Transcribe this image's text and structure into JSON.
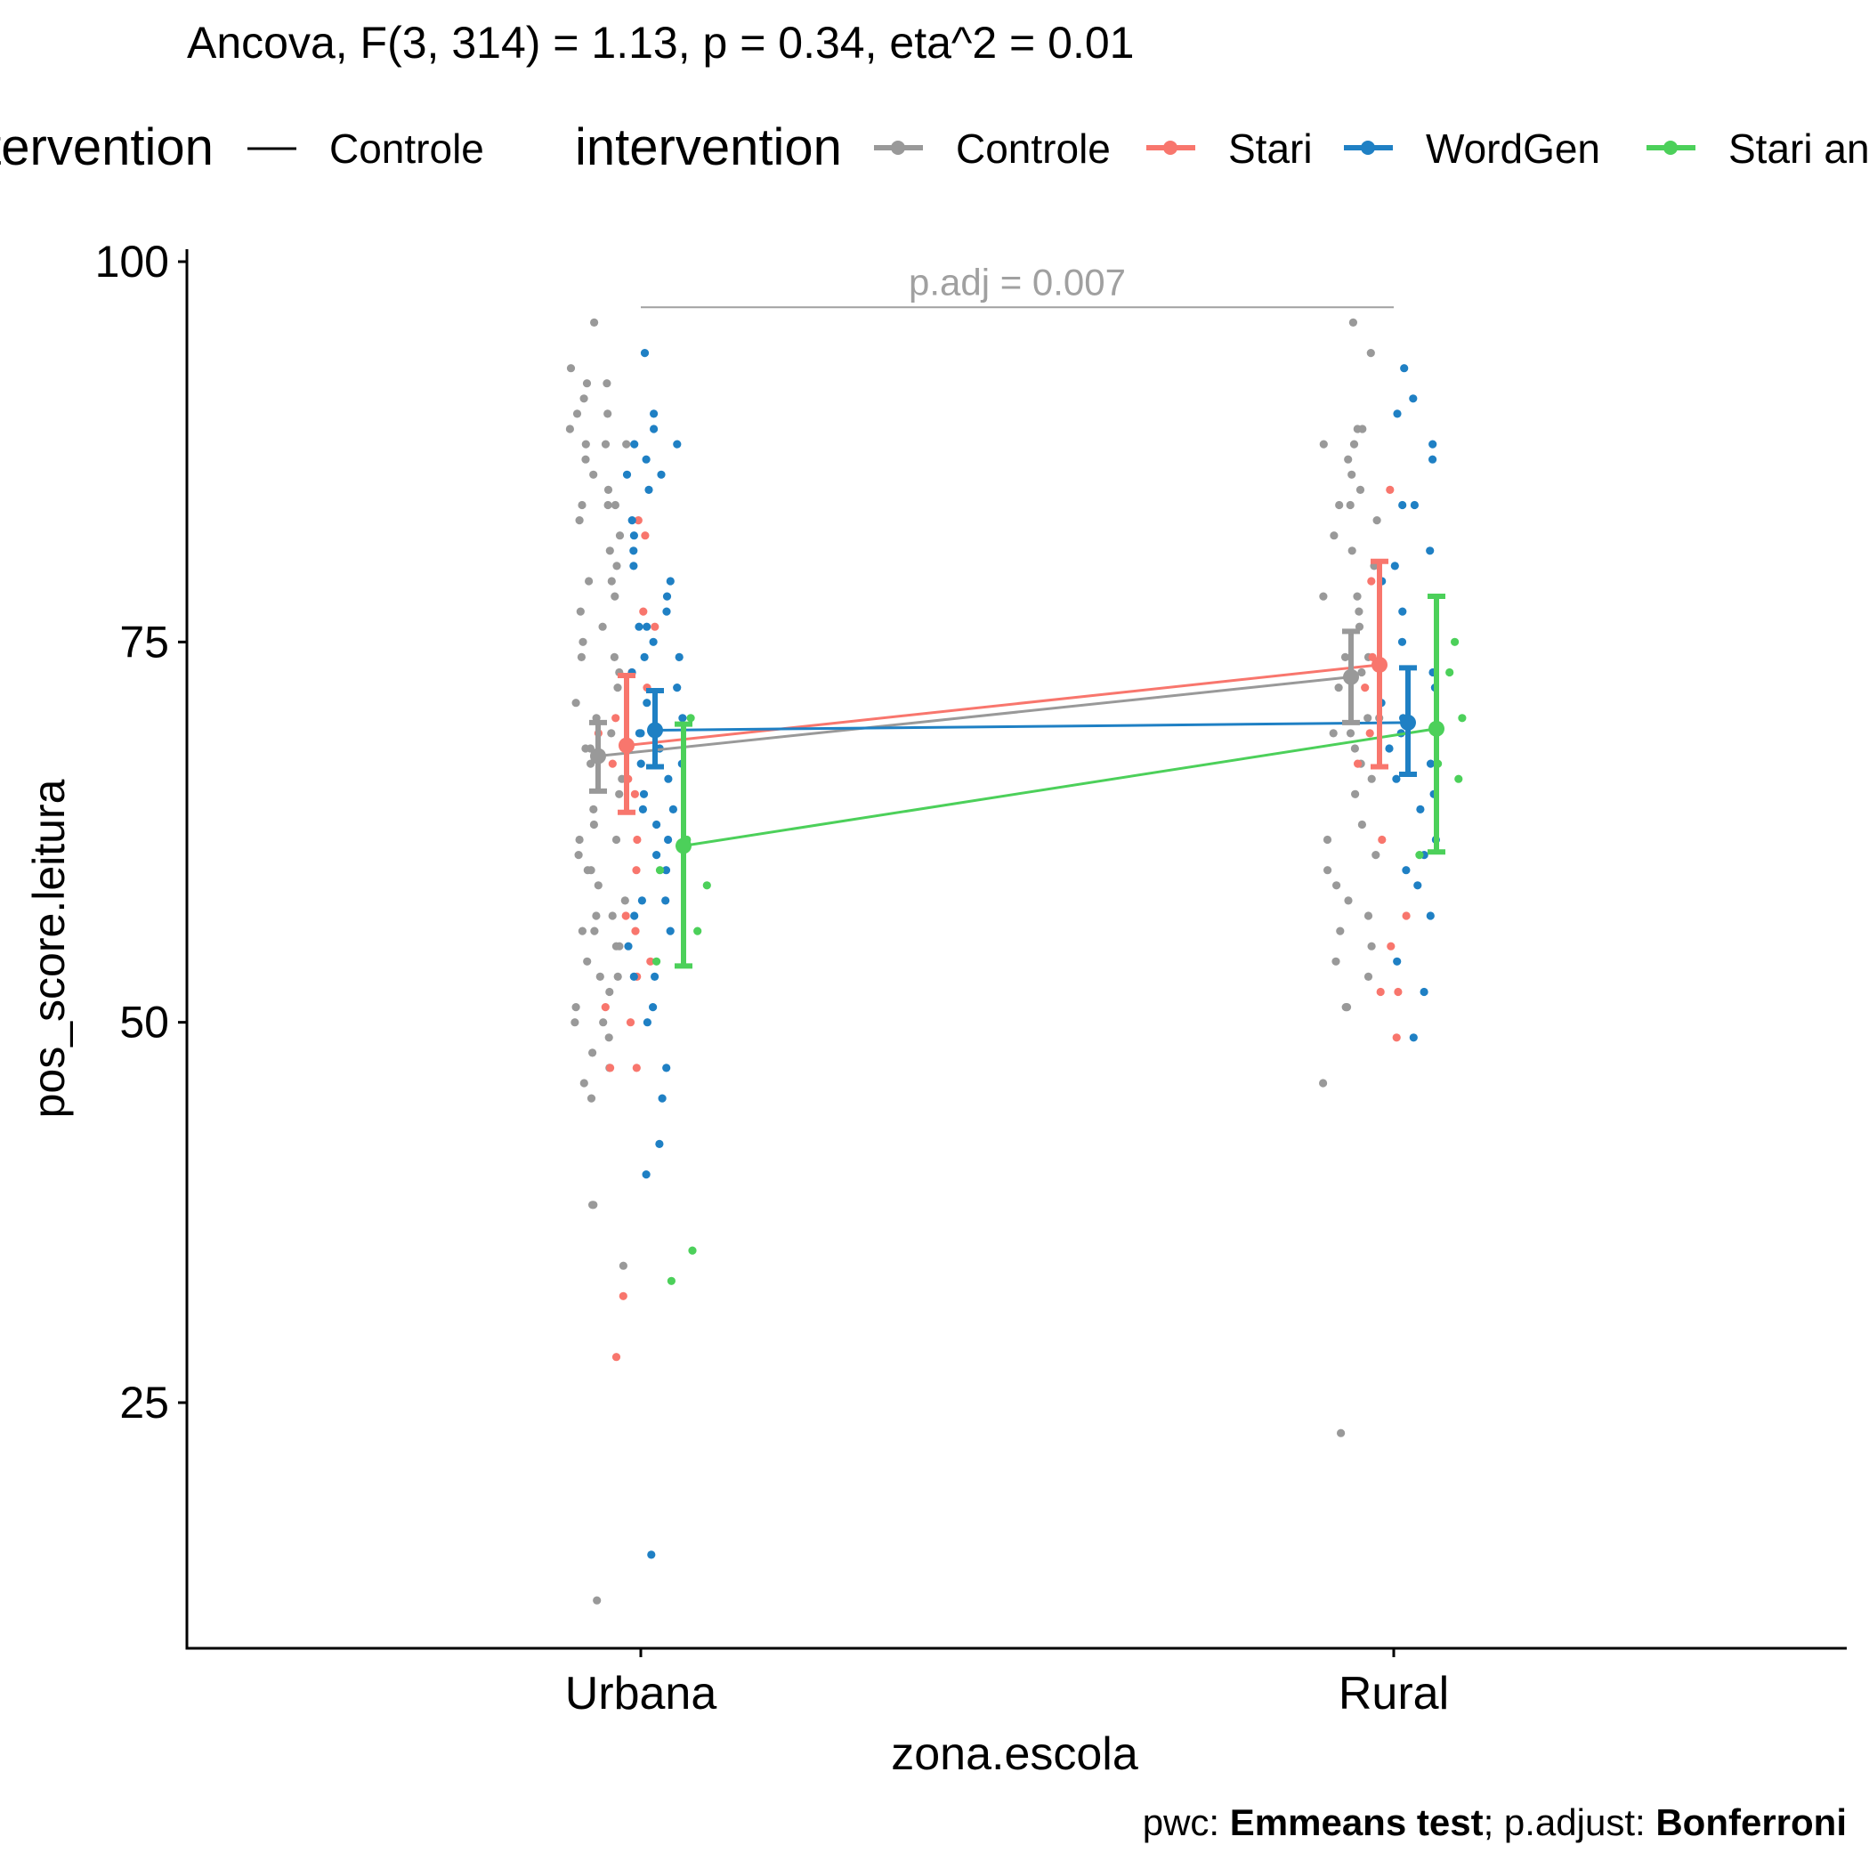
{
  "chart_data": {
    "type": "scatter",
    "title": "Ancova, F(3, 314) = 1.13, p = 0.34, eta^2 = 0.01",
    "xlabel": "zona.escola",
    "ylabel": "pos_score.leitura",
    "categories": [
      "Urbana",
      "Rural"
    ],
    "y_ticks": [
      "25",
      "50",
      "75",
      "100"
    ],
    "ylim": [
      10,
      101
    ],
    "grid": false,
    "legend_position": "top",
    "legend_line": {
      "title": "intervention",
      "item": "Controle"
    },
    "legend_points": {
      "title": "intervention",
      "items": [
        "Controle",
        "Stari",
        "WordGen",
        "Stari and WordGen"
      ]
    },
    "bracket": {
      "label": "p.adj = 0.007",
      "y": 97,
      "from": "Urbana",
      "to": "Rural",
      "color": "#a0a0a0"
    },
    "caption": {
      "prefix1": "pwc: ",
      "bold1": "Emmeans test",
      "prefix2": "; p.adjust: ",
      "bold2": "Bonferroni"
    },
    "series": [
      {
        "name": "Controle",
        "color": "#999999",
        "means": [
          67.5,
          72.7
        ],
        "ci_low": [
          65.2,
          69.7
        ],
        "ci_high": [
          69.7,
          75.7
        ],
        "points": {
          "Urbana": [
            92,
            92,
            88,
            88,
            85,
            84,
            83,
            82,
            81,
            80,
            79,
            79,
            78,
            77,
            76,
            75,
            74,
            74,
            73,
            72,
            71,
            70,
            69,
            68,
            68,
            67,
            66,
            65,
            64,
            63,
            62,
            62,
            61,
            60,
            60,
            59,
            58,
            57,
            57,
            56,
            56,
            55,
            55,
            54,
            53,
            53,
            52,
            51,
            50,
            50,
            49,
            48,
            47,
            46,
            45,
            38,
            38,
            34,
            96,
            93,
            91,
            90,
            90,
            89,
            88,
            87,
            86,
            84,
            84,
            12
          ],
          "Rural": [
            96,
            94,
            89,
            89,
            88,
            88,
            87,
            86,
            85,
            84,
            84,
            83,
            82,
            81,
            80,
            78,
            78,
            77,
            76,
            74,
            74,
            73,
            72,
            70,
            70,
            69,
            69,
            68,
            67,
            66,
            65,
            63,
            62,
            61,
            60,
            59,
            58,
            57,
            56,
            55,
            54,
            53,
            51,
            51,
            46,
            23
          ]
        }
      },
      {
        "name": "Stari",
        "color": "#F8766D",
        "means": [
          68.2,
          73.5
        ],
        "ci_low": [
          63.8,
          66.8
        ],
        "ci_high": [
          72.8,
          80.3
        ],
        "points": {
          "Urbana": [
            83,
            82,
            77,
            76,
            73,
            72,
            70,
            69,
            67,
            66,
            65,
            62,
            60,
            57,
            56,
            54,
            53,
            51,
            50,
            47,
            47,
            32,
            28
          ],
          "Rural": [
            85,
            79,
            74,
            72,
            69,
            67,
            62,
            57,
            55,
            52,
            52,
            49
          ]
        }
      },
      {
        "name": "WordGen",
        "color": "#1F80C4",
        "means": [
          69.2,
          69.7
        ],
        "ci_low": [
          66.8,
          66.3
        ],
        "ci_high": [
          71.8,
          73.3
        ],
        "points": {
          "Urbana": [
            94,
            90,
            89,
            88,
            88,
            87,
            86,
            86,
            85,
            83,
            82,
            81,
            80,
            79,
            78,
            77,
            76,
            76,
            75,
            74,
            74,
            73,
            72,
            71,
            70,
            69,
            69,
            68,
            67,
            67,
            66,
            65,
            64,
            64,
            63,
            62,
            61,
            60,
            58,
            58,
            57,
            56,
            55,
            53,
            53,
            51,
            50,
            47,
            45,
            42,
            40,
            15
          ],
          "Rural": [
            93,
            91,
            90,
            88,
            87,
            84,
            84,
            81,
            80,
            79,
            77,
            75,
            73,
            72,
            71,
            70,
            69,
            68,
            67,
            66,
            65,
            64,
            62,
            61,
            60,
            59,
            57,
            54,
            52,
            49
          ]
        }
      },
      {
        "name": "Stari and WordGen",
        "color": "#4CD05A",
        "means": [
          61.6,
          69.3
        ],
        "ci_low": [
          53.7,
          61.2
        ],
        "ci_high": [
          69.6,
          78.0
        ],
        "points": {
          "Urbana": [
            70,
            62,
            60,
            59,
            56,
            54,
            35,
            33
          ],
          "Rural": [
            75,
            73,
            70,
            67,
            66,
            61
          ]
        }
      }
    ]
  }
}
